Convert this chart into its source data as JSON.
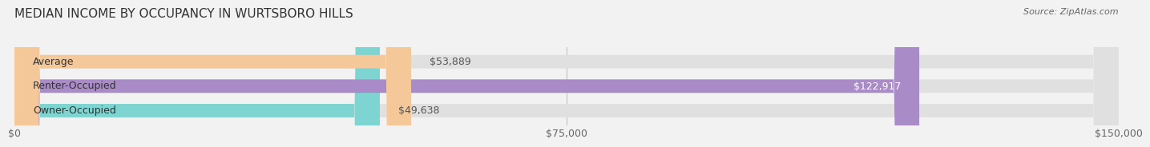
{
  "title": "MEDIAN INCOME BY OCCUPANCY IN WURTSBORO HILLS",
  "source": "Source: ZipAtlas.com",
  "categories": [
    "Owner-Occupied",
    "Renter-Occupied",
    "Average"
  ],
  "values": [
    49638,
    122917,
    53889
  ],
  "bar_colors": [
    "#7dd4d0",
    "#a98bc8",
    "#f5c89a"
  ],
  "bar_labels": [
    "$49,638",
    "$122,917",
    "$53,889"
  ],
  "label_inside": [
    false,
    true,
    false
  ],
  "xlim": [
    0,
    150000
  ],
  "xticks": [
    0,
    75000,
    150000
  ],
  "xtick_labels": [
    "$0",
    "$75,000",
    "$150,000"
  ],
  "background_color": "#f2f2f2",
  "bar_background_color": "#e0e0e0",
  "title_fontsize": 11,
  "source_fontsize": 8,
  "label_fontsize": 9,
  "tick_fontsize": 9,
  "bar_height": 0.55
}
